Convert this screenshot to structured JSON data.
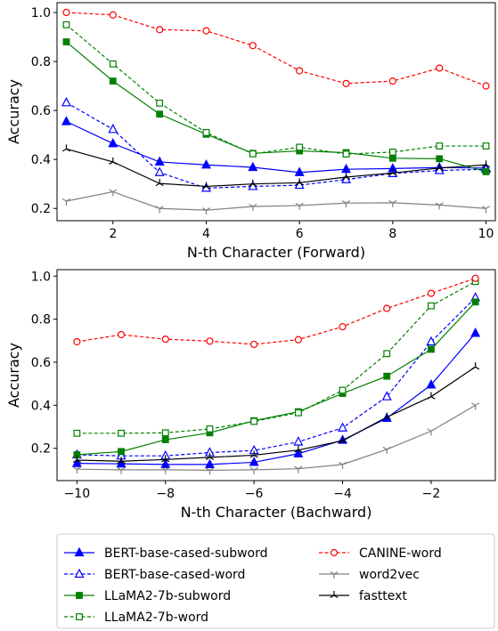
{
  "chart_data": [
    {
      "type": "line",
      "xlabel": "N-th Character (Forward)",
      "ylabel": "Accuracy",
      "xlim": [
        0.8,
        10.2
      ],
      "ylim": [
        0.15,
        1.04
      ],
      "xticks": [
        2,
        4,
        6,
        8,
        10
      ],
      "xtick_labels": [
        "2",
        "4",
        "6",
        "8",
        "10"
      ],
      "yticks": [
        0.2,
        0.4,
        0.6,
        0.8,
        1.0
      ],
      "ytick_labels": [
        "0.2",
        "0.4",
        "0.6",
        "0.8",
        "1.0"
      ],
      "x": [
        1,
        2,
        3,
        4,
        5,
        6,
        7,
        8,
        9,
        10
      ],
      "grid": false,
      "series": [
        {
          "name": "BERT-base-cased-subword",
          "values": [
            0.555,
            0.465,
            0.39,
            0.378,
            0.368,
            0.347,
            0.36,
            0.363,
            0.367,
            0.365
          ]
        },
        {
          "name": "BERT-base-cased-word",
          "values": [
            0.632,
            0.523,
            0.347,
            0.283,
            0.29,
            0.295,
            0.318,
            0.343,
            0.355,
            0.36
          ]
        },
        {
          "name": "LLaMA2-7b-subword",
          "values": [
            0.88,
            0.72,
            0.585,
            0.503,
            0.425,
            0.435,
            0.428,
            0.405,
            0.403,
            0.35
          ]
        },
        {
          "name": "LLaMA2-7b-word",
          "values": [
            0.95,
            0.79,
            0.63,
            0.51,
            0.423,
            0.45,
            0.422,
            0.43,
            0.455,
            0.455
          ]
        },
        {
          "name": "CANINE-word",
          "values": [
            1.0,
            0.99,
            0.93,
            0.925,
            0.865,
            0.762,
            0.71,
            0.72,
            0.773,
            0.7
          ]
        },
        {
          "name": "word2vec",
          "values": [
            0.23,
            0.268,
            0.2,
            0.193,
            0.208,
            0.212,
            0.222,
            0.223,
            0.214,
            0.2
          ]
        },
        {
          "name": "fasttext",
          "values": [
            0.443,
            0.39,
            0.302,
            0.29,
            0.3,
            0.305,
            0.328,
            0.345,
            0.365,
            0.378
          ]
        }
      ]
    },
    {
      "type": "line",
      "xlabel": "N-th Character (Bachward)",
      "ylabel": "Accuracy",
      "xlim": [
        -10.45,
        -0.55
      ],
      "ylim": [
        0.05,
        1.03
      ],
      "xticks": [
        -10,
        -8,
        -6,
        -4,
        -2
      ],
      "xtick_labels": [
        "−10",
        "−8",
        "−6",
        "−4",
        "−2"
      ],
      "yticks": [
        0.2,
        0.4,
        0.6,
        0.8,
        1.0
      ],
      "ytick_labels": [
        "0.2",
        "0.4",
        "0.6",
        "0.8",
        "1.0"
      ],
      "x": [
        -10,
        -9,
        -8,
        -7,
        -6,
        -5,
        -4,
        -3,
        -2,
        -1
      ],
      "grid": false,
      "series": [
        {
          "name": "BERT-base-cased-subword",
          "values": [
            0.13,
            0.128,
            0.125,
            0.125,
            0.135,
            0.175,
            0.238,
            0.34,
            0.495,
            0.735
          ]
        },
        {
          "name": "BERT-base-cased-word",
          "values": [
            0.17,
            0.165,
            0.165,
            0.18,
            0.19,
            0.23,
            0.295,
            0.44,
            0.695,
            0.9
          ]
        },
        {
          "name": "LLaMA2-7b-subword",
          "values": [
            0.17,
            0.185,
            0.24,
            0.272,
            0.328,
            0.37,
            0.455,
            0.535,
            0.66,
            0.88
          ]
        },
        {
          "name": "LLaMA2-7b-word",
          "values": [
            0.27,
            0.27,
            0.272,
            0.29,
            0.325,
            0.365,
            0.47,
            0.64,
            0.862,
            0.975
          ]
        },
        {
          "name": "CANINE-word",
          "values": [
            0.695,
            0.728,
            0.707,
            0.698,
            0.683,
            0.705,
            0.765,
            0.85,
            0.92,
            0.99
          ]
        },
        {
          "name": "word2vec",
          "values": [
            0.103,
            0.1,
            0.1,
            0.098,
            0.1,
            0.105,
            0.125,
            0.195,
            0.28,
            0.4
          ]
        },
        {
          "name": "fasttext",
          "values": [
            0.145,
            0.14,
            0.148,
            0.158,
            0.168,
            0.192,
            0.235,
            0.345,
            0.44,
            0.578
          ]
        }
      ]
    }
  ],
  "legend": {
    "placement": "bottom",
    "entries": [
      {
        "name": "BERT-base-cased-subword",
        "color": "#0000ff",
        "style": "solid",
        "marker": "triangle-filled"
      },
      {
        "name": "BERT-base-cased-word",
        "color": "#0000ff",
        "style": "dashed",
        "marker": "triangle-open"
      },
      {
        "name": "LLaMA2-7b-subword",
        "color": "#008000",
        "style": "solid",
        "marker": "square-filled"
      },
      {
        "name": "LLaMA2-7b-word",
        "color": "#008000",
        "style": "dashed",
        "marker": "square-open"
      },
      {
        "name": "CANINE-word",
        "color": "#ff0000",
        "style": "dashed",
        "marker": "circle-open"
      },
      {
        "name": "word2vec",
        "color": "#808080",
        "style": "solid",
        "marker": "tri-down"
      },
      {
        "name": "fasttext",
        "color": "#000000",
        "style": "solid",
        "marker": "tri-up"
      }
    ]
  }
}
